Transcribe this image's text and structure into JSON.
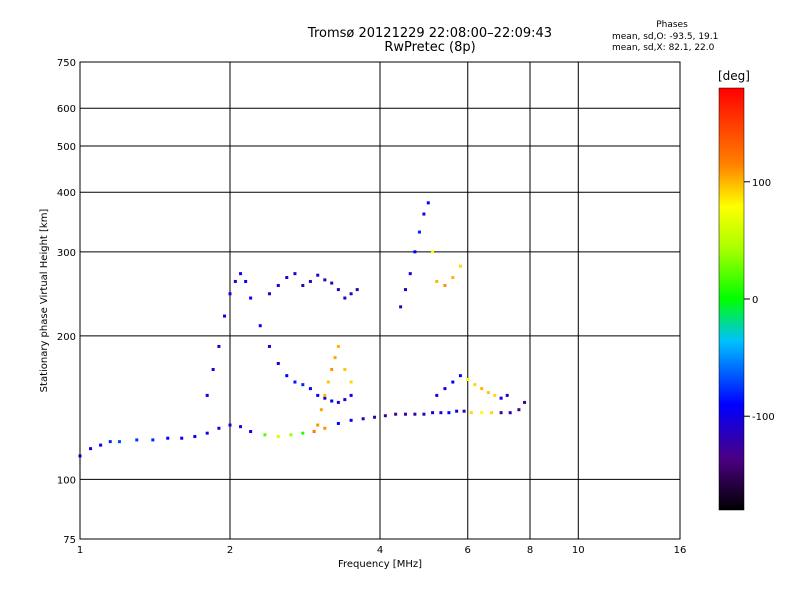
{
  "header": {
    "title": "Tromsø 20121229 22:08:00–22:09:43",
    "subtitle": "RwPretec (8p)",
    "stats_title": "Phases",
    "stats_line1": "mean, sd,O:  -93.5, 19.1",
    "stats_line2": "mean, sd,X:  82.1, 22.0"
  },
  "colorbar": {
    "label": "[deg]",
    "range": [
      -180,
      180
    ],
    "ticks": [
      {
        "value": 100,
        "label": "100"
      },
      {
        "value": 0,
        "label": "0"
      },
      {
        "value": -100,
        "label": "-100"
      }
    ]
  },
  "chart_data": {
    "type": "scatter",
    "xlabel": "Frequency [MHz]",
    "ylabel": "Stationary phase Virtual Height [km]",
    "xscale": "log",
    "yscale": "log",
    "xlim": [
      1,
      16
    ],
    "ylim": [
      75,
      750
    ],
    "xticks": [
      {
        "value": 1,
        "label": "1"
      },
      {
        "value": 2,
        "label": "2"
      },
      {
        "value": 4,
        "label": "4"
      },
      {
        "value": 6,
        "label": "6"
      },
      {
        "value": 8,
        "label": "8"
      },
      {
        "value": 10,
        "label": "10"
      },
      {
        "value": 16,
        "label": "16"
      }
    ],
    "yticks": [
      {
        "value": 75,
        "label": "75"
      },
      {
        "value": 100,
        "label": "100"
      },
      {
        "value": 200,
        "label": "200"
      },
      {
        "value": 300,
        "label": "300"
      },
      {
        "value": 400,
        "label": "400"
      },
      {
        "value": 500,
        "label": "500"
      },
      {
        "value": 600,
        "label": "600"
      },
      {
        "value": 750,
        "label": "750"
      }
    ],
    "grid": true,
    "color_encoding": "phase [deg]",
    "series": [
      {
        "x": [
          1.0,
          1.05,
          1.1,
          1.15,
          1.2,
          1.3,
          1.4,
          1.5,
          1.6,
          1.7,
          1.8,
          1.9,
          2.0,
          2.1,
          2.2,
          2.35,
          2.5,
          2.65,
          2.8,
          2.95,
          3.1,
          3.3,
          3.5,
          3.7,
          3.9,
          4.1,
          4.3,
          4.5,
          4.7,
          4.9,
          5.1,
          5.3,
          5.5,
          5.7,
          5.9,
          6.1,
          6.4,
          6.7,
          7.0,
          7.3,
          7.6,
          7.8
        ],
        "y": [
          112,
          116,
          118,
          120,
          120,
          121,
          121,
          122,
          122,
          123,
          125,
          128,
          130,
          129,
          126,
          124,
          123,
          124,
          125,
          126,
          128,
          131,
          133,
          134,
          135,
          136,
          137,
          137,
          137,
          137,
          138,
          138,
          138,
          139,
          139,
          138,
          138,
          138,
          138,
          138,
          140,
          145
        ],
        "phase": [
          -100,
          -95,
          -90,
          -80,
          -70,
          -75,
          -80,
          -90,
          -90,
          -95,
          -100,
          -100,
          -100,
          -105,
          -95,
          20,
          60,
          40,
          10,
          120,
          110,
          -90,
          -100,
          -110,
          -120,
          -130,
          -130,
          -125,
          -125,
          -120,
          -100,
          -110,
          -90,
          -100,
          -120,
          90,
          80,
          90,
          -130,
          -120,
          -140,
          -130
        ]
      },
      {
        "x": [
          1.8,
          1.85,
          1.9,
          1.95,
          2.0,
          2.05,
          2.1,
          2.15,
          2.2,
          2.3,
          2.4,
          2.5,
          2.6,
          2.7,
          2.8,
          2.9,
          3.0,
          3.1,
          3.2,
          3.3,
          3.4,
          3.5
        ],
        "y": [
          150,
          170,
          190,
          220,
          245,
          260,
          270,
          260,
          240,
          210,
          190,
          175,
          165,
          160,
          158,
          155,
          150,
          148,
          146,
          145,
          147,
          150
        ],
        "phase": [
          -100,
          -105,
          -100,
          -95,
          -100,
          -110,
          -100,
          -95,
          -90,
          -95,
          -100,
          -100,
          -90,
          -85,
          -80,
          -90,
          -95,
          -100,
          -95,
          -100,
          -105,
          -100
        ]
      },
      {
        "x": [
          2.4,
          2.5,
          2.6,
          2.7,
          2.8,
          2.9,
          3.0,
          3.1,
          3.2,
          3.3,
          3.4,
          3.5,
          3.6
        ],
        "y": [
          245,
          255,
          265,
          270,
          255,
          260,
          268,
          262,
          258,
          250,
          240,
          245,
          250
        ],
        "phase": [
          -110,
          -105,
          -115,
          -110,
          -120,
          -115,
          -110,
          -115,
          -120,
          -115,
          -110,
          -115,
          -120
        ]
      },
      {
        "x": [
          3.0,
          3.05,
          3.1,
          3.15,
          3.2,
          3.25,
          3.3,
          3.4,
          3.5
        ],
        "y": [
          130,
          140,
          150,
          160,
          170,
          180,
          190,
          170,
          160
        ],
        "phase": [
          110,
          105,
          100,
          95,
          110,
          105,
          100,
          95,
          90
        ]
      },
      {
        "x": [
          4.4,
          4.5,
          4.6,
          4.7,
          4.8,
          4.9,
          5.0,
          5.1,
          5.2,
          5.4,
          5.6,
          5.8
        ],
        "y": [
          230,
          250,
          270,
          300,
          330,
          360,
          380,
          300,
          260,
          255,
          265,
          280
        ],
        "phase": [
          -120,
          -110,
          -100,
          -90,
          -80,
          -100,
          -90,
          80,
          100,
          110,
          100,
          90
        ]
      },
      {
        "x": [
          5.2,
          5.4,
          5.6,
          5.8,
          6.0,
          6.2,
          6.4,
          6.6,
          6.8,
          7.0,
          7.2
        ],
        "y": [
          150,
          155,
          160,
          165,
          162,
          158,
          155,
          152,
          150,
          148,
          150
        ],
        "phase": [
          -110,
          -100,
          -90,
          -100,
          80,
          90,
          100,
          95,
          90,
          -100,
          -110
        ]
      }
    ]
  }
}
